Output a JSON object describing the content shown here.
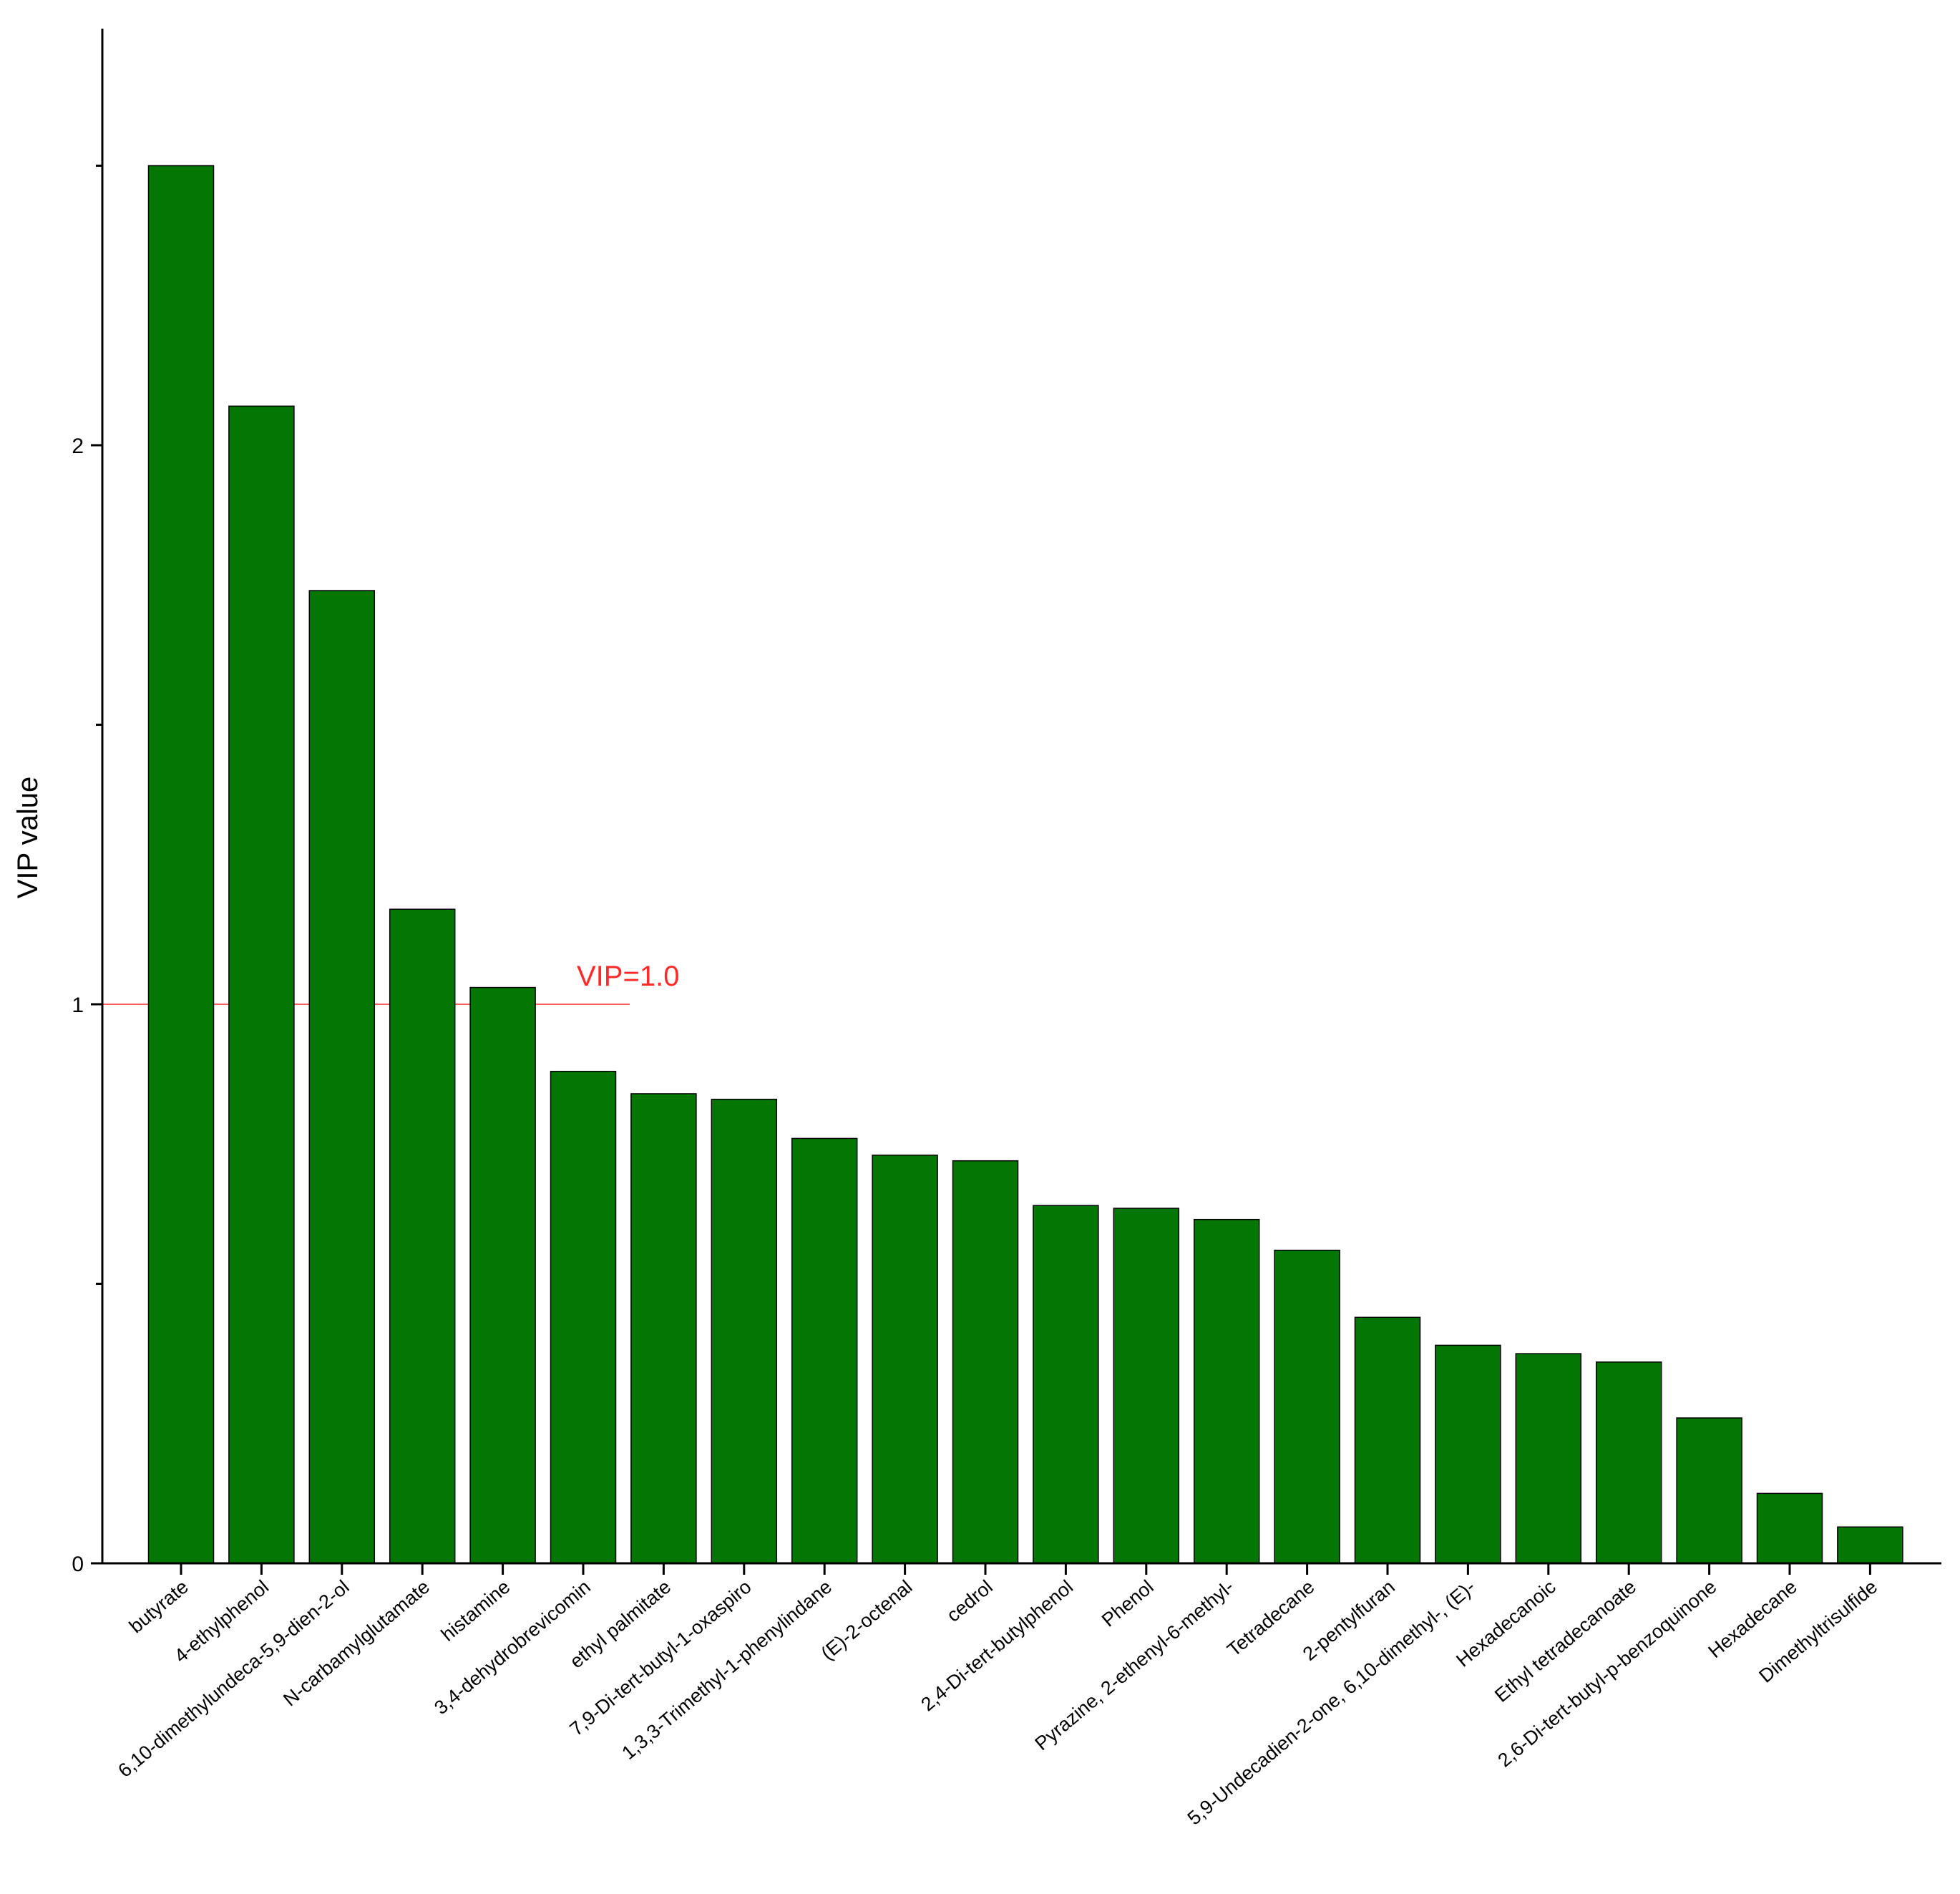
{
  "chart_data": {
    "type": "bar",
    "ylabel": "VIP value",
    "xlabel": "",
    "ylim": [
      0,
      2.75
    ],
    "yticks": [
      0,
      1,
      2
    ],
    "bar_color": "#037603",
    "categories": [
      "butyrate",
      "4-ethylphenol",
      "6,10-dimethylundeca-5,9-dien-2-ol",
      "N-carbamylglutamate",
      "histamine",
      "3,4-dehydrobrevicomin",
      "ethyl palmitate",
      "7,9-Di-tert-butyl-1-oxaspiro",
      "1,3,3-Trimethyl-1-phenylindane",
      "(E)-2-octenal",
      "cedrol",
      "2,4-Di-tert-butylphenol",
      "Phenol",
      "Pyrazine, 2-ethenyl-6-methyl-",
      "Tetradecane",
      "2-pentylfuran",
      "5,9-Undecadien-2-one, 6,10-dimethyl-, (E)-",
      "Hexadecanoic",
      "Ethyl tetradecanoate",
      "2,6-Di-tert-butyl-p-benzoquinone",
      "Hexadecane",
      "Dimethyltrisulfide"
    ],
    "values": [
      2.5,
      2.07,
      1.74,
      1.17,
      1.03,
      0.88,
      0.84,
      0.83,
      0.76,
      0.73,
      0.72,
      0.64,
      0.635,
      0.615,
      0.56,
      0.44,
      0.39,
      0.375,
      0.36,
      0.26,
      0.125,
      0.065
    ],
    "reference_line": {
      "value": 1.0,
      "label": "VIP=1.0",
      "color": "#ff2a2a"
    }
  }
}
